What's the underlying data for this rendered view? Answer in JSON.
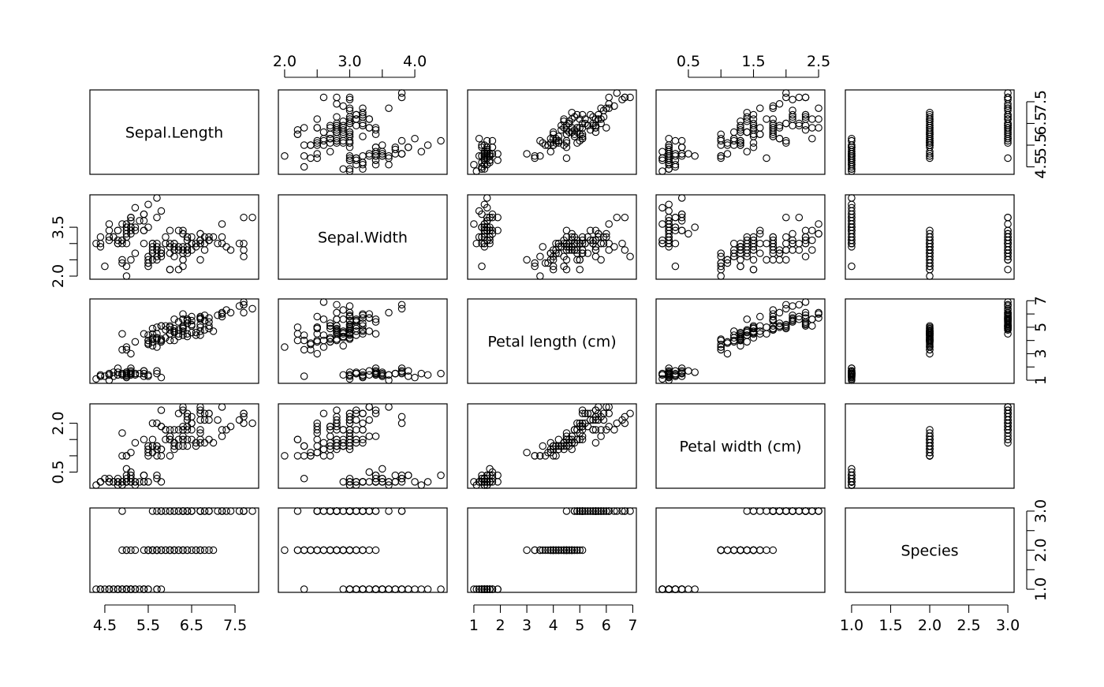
{
  "chart_data": {
    "type": "scatter",
    "variables": [
      {
        "name": "Sepal.Length",
        "range": [
          4.3,
          7.9
        ],
        "ticks": [
          4.5,
          5.5,
          6.5,
          7.5
        ],
        "tick_labels": [
          "4.5",
          "5.5",
          "6.5",
          "7.5"
        ]
      },
      {
        "name": "Sepal.Width",
        "range": [
          2.0,
          4.4
        ],
        "ticks": [
          2.0,
          2.5,
          3.0,
          3.5,
          4.0
        ],
        "tick_labels": [
          "2.0",
          "",
          "3.0",
          "",
          "4.0"
        ],
        "left_ticks": [
          2.0,
          2.5,
          3.0,
          3.5
        ],
        "left_tick_labels": [
          "2.0",
          "",
          "",
          "3.5"
        ]
      },
      {
        "name": "Petal length (cm)",
        "range": [
          1.0,
          6.9
        ],
        "ticks": [
          1,
          2,
          3,
          4,
          5,
          6,
          7
        ],
        "tick_labels": [
          "1",
          "2",
          "3",
          "4",
          "5",
          "6",
          "7"
        ],
        "right_ticks": [
          1,
          2,
          3,
          4,
          5,
          6,
          7
        ],
        "right_tick_labels": [
          "1",
          "",
          "3",
          "",
          "5",
          "",
          "7"
        ]
      },
      {
        "name": "Petal width (cm)",
        "range": [
          0.1,
          2.5
        ],
        "ticks": [
          0.5,
          1.0,
          1.5,
          2.0,
          2.5
        ],
        "tick_labels": [
          "0.5",
          "",
          "1.5",
          "",
          "2.5"
        ],
        "left_ticks": [
          0.5,
          1.0,
          1.5,
          2.0
        ],
        "left_tick_labels": [
          "0.5",
          "",
          "",
          "2.0"
        ]
      },
      {
        "name": "Species",
        "range": [
          1.0,
          3.0
        ],
        "ticks": [
          1.0,
          1.5,
          2.0,
          2.5,
          3.0
        ],
        "tick_labels": [
          "1.0",
          "1.5",
          "2.0",
          "2.5",
          "3.0"
        ],
        "right_ticks": [
          1.0,
          1.5,
          2.0,
          2.5,
          3.0
        ],
        "right_tick_labels": [
          "1.0",
          "",
          "2.0",
          "",
          "3.0"
        ]
      }
    ],
    "observations": [
      [
        5.1,
        3.5,
        1.4,
        0.2,
        1
      ],
      [
        4.9,
        3.0,
        1.4,
        0.2,
        1
      ],
      [
        4.7,
        3.2,
        1.3,
        0.2,
        1
      ],
      [
        4.6,
        3.1,
        1.5,
        0.2,
        1
      ],
      [
        5.0,
        3.6,
        1.4,
        0.2,
        1
      ],
      [
        5.4,
        3.9,
        1.7,
        0.4,
        1
      ],
      [
        4.6,
        3.4,
        1.4,
        0.3,
        1
      ],
      [
        5.0,
        3.4,
        1.5,
        0.2,
        1
      ],
      [
        4.4,
        2.9,
        1.4,
        0.2,
        1
      ],
      [
        4.9,
        3.1,
        1.5,
        0.1,
        1
      ],
      [
        5.4,
        3.7,
        1.5,
        0.2,
        1
      ],
      [
        4.8,
        3.4,
        1.6,
        0.2,
        1
      ],
      [
        4.8,
        3.0,
        1.4,
        0.1,
        1
      ],
      [
        4.3,
        3.0,
        1.1,
        0.1,
        1
      ],
      [
        5.8,
        4.0,
        1.2,
        0.2,
        1
      ],
      [
        5.7,
        4.4,
        1.5,
        0.4,
        1
      ],
      [
        5.4,
        3.9,
        1.3,
        0.4,
        1
      ],
      [
        5.1,
        3.5,
        1.4,
        0.3,
        1
      ],
      [
        5.7,
        3.8,
        1.7,
        0.3,
        1
      ],
      [
        5.1,
        3.8,
        1.5,
        0.3,
        1
      ],
      [
        5.4,
        3.4,
        1.7,
        0.2,
        1
      ],
      [
        5.1,
        3.7,
        1.5,
        0.4,
        1
      ],
      [
        4.6,
        3.6,
        1.0,
        0.2,
        1
      ],
      [
        5.1,
        3.3,
        1.7,
        0.5,
        1
      ],
      [
        4.8,
        3.4,
        1.9,
        0.2,
        1
      ],
      [
        5.0,
        3.0,
        1.6,
        0.2,
        1
      ],
      [
        5.0,
        3.4,
        1.6,
        0.4,
        1
      ],
      [
        5.2,
        3.5,
        1.5,
        0.2,
        1
      ],
      [
        5.2,
        3.4,
        1.4,
        0.2,
        1
      ],
      [
        4.7,
        3.2,
        1.6,
        0.2,
        1
      ],
      [
        4.8,
        3.1,
        1.6,
        0.2,
        1
      ],
      [
        5.4,
        3.4,
        1.5,
        0.4,
        1
      ],
      [
        5.2,
        4.1,
        1.5,
        0.1,
        1
      ],
      [
        5.5,
        4.2,
        1.4,
        0.2,
        1
      ],
      [
        4.9,
        3.1,
        1.5,
        0.2,
        1
      ],
      [
        5.0,
        3.2,
        1.2,
        0.2,
        1
      ],
      [
        5.5,
        3.5,
        1.3,
        0.2,
        1
      ],
      [
        4.9,
        3.6,
        1.4,
        0.1,
        1
      ],
      [
        4.4,
        3.0,
        1.3,
        0.2,
        1
      ],
      [
        5.1,
        3.4,
        1.5,
        0.2,
        1
      ],
      [
        5.0,
        3.5,
        1.3,
        0.3,
        1
      ],
      [
        4.5,
        2.3,
        1.3,
        0.3,
        1
      ],
      [
        4.4,
        3.2,
        1.3,
        0.2,
        1
      ],
      [
        5.0,
        3.5,
        1.6,
        0.6,
        1
      ],
      [
        5.1,
        3.8,
        1.9,
        0.4,
        1
      ],
      [
        4.8,
        3.0,
        1.4,
        0.3,
        1
      ],
      [
        5.1,
        3.8,
        1.6,
        0.2,
        1
      ],
      [
        4.6,
        3.2,
        1.4,
        0.2,
        1
      ],
      [
        5.3,
        3.7,
        1.5,
        0.2,
        1
      ],
      [
        5.0,
        3.3,
        1.4,
        0.2,
        1
      ],
      [
        7.0,
        3.2,
        4.7,
        1.4,
        2
      ],
      [
        6.4,
        3.2,
        4.5,
        1.5,
        2
      ],
      [
        6.9,
        3.1,
        4.9,
        1.5,
        2
      ],
      [
        5.5,
        2.3,
        4.0,
        1.3,
        2
      ],
      [
        6.5,
        2.8,
        4.6,
        1.5,
        2
      ],
      [
        5.7,
        2.8,
        4.5,
        1.3,
        2
      ],
      [
        6.3,
        3.3,
        4.7,
        1.6,
        2
      ],
      [
        4.9,
        2.4,
        3.3,
        1.0,
        2
      ],
      [
        6.6,
        2.9,
        4.6,
        1.3,
        2
      ],
      [
        5.2,
        2.7,
        3.9,
        1.4,
        2
      ],
      [
        5.0,
        2.0,
        3.5,
        1.0,
        2
      ],
      [
        5.9,
        3.0,
        4.2,
        1.5,
        2
      ],
      [
        6.0,
        2.2,
        4.0,
        1.0,
        2
      ],
      [
        6.1,
        2.9,
        4.7,
        1.4,
        2
      ],
      [
        5.6,
        2.9,
        3.6,
        1.3,
        2
      ],
      [
        6.7,
        3.1,
        4.4,
        1.4,
        2
      ],
      [
        5.6,
        3.0,
        4.5,
        1.5,
        2
      ],
      [
        5.8,
        2.7,
        4.1,
        1.0,
        2
      ],
      [
        6.2,
        2.2,
        4.5,
        1.5,
        2
      ],
      [
        5.6,
        2.5,
        3.9,
        1.1,
        2
      ],
      [
        5.9,
        3.2,
        4.8,
        1.8,
        2
      ],
      [
        6.1,
        2.8,
        4.0,
        1.3,
        2
      ],
      [
        6.3,
        2.5,
        4.9,
        1.5,
        2
      ],
      [
        6.1,
        2.8,
        4.7,
        1.2,
        2
      ],
      [
        6.4,
        2.9,
        4.3,
        1.3,
        2
      ],
      [
        6.6,
        3.0,
        4.4,
        1.4,
        2
      ],
      [
        6.8,
        2.8,
        4.8,
        1.4,
        2
      ],
      [
        6.7,
        3.0,
        5.0,
        1.7,
        2
      ],
      [
        6.0,
        2.9,
        4.5,
        1.5,
        2
      ],
      [
        5.7,
        2.6,
        3.5,
        1.0,
        2
      ],
      [
        5.5,
        2.4,
        3.8,
        1.1,
        2
      ],
      [
        5.5,
        2.4,
        3.7,
        1.0,
        2
      ],
      [
        5.8,
        2.7,
        3.9,
        1.2,
        2
      ],
      [
        6.0,
        2.7,
        5.1,
        1.6,
        2
      ],
      [
        5.4,
        3.0,
        4.5,
        1.5,
        2
      ],
      [
        6.0,
        3.4,
        4.5,
        1.6,
        2
      ],
      [
        6.7,
        3.1,
        4.7,
        1.5,
        2
      ],
      [
        6.3,
        2.3,
        4.4,
        1.3,
        2
      ],
      [
        5.6,
        3.0,
        4.1,
        1.3,
        2
      ],
      [
        5.5,
        2.5,
        4.0,
        1.3,
        2
      ],
      [
        5.5,
        2.6,
        4.4,
        1.2,
        2
      ],
      [
        6.1,
        3.0,
        4.6,
        1.4,
        2
      ],
      [
        5.8,
        2.6,
        4.0,
        1.2,
        2
      ],
      [
        5.0,
        2.3,
        3.3,
        1.0,
        2
      ],
      [
        5.6,
        2.7,
        4.2,
        1.3,
        2
      ],
      [
        5.7,
        3.0,
        4.2,
        1.2,
        2
      ],
      [
        5.7,
        2.9,
        4.2,
        1.3,
        2
      ],
      [
        6.2,
        2.9,
        4.3,
        1.3,
        2
      ],
      [
        5.1,
        2.5,
        3.0,
        1.1,
        2
      ],
      [
        5.7,
        2.8,
        4.1,
        1.3,
        2
      ],
      [
        6.3,
        3.3,
        6.0,
        2.5,
        3
      ],
      [
        5.8,
        2.7,
        5.1,
        1.9,
        3
      ],
      [
        7.1,
        3.0,
        5.9,
        2.1,
        3
      ],
      [
        6.3,
        2.9,
        5.6,
        1.8,
        3
      ],
      [
        6.5,
        3.0,
        5.8,
        2.2,
        3
      ],
      [
        7.6,
        3.0,
        6.6,
        2.1,
        3
      ],
      [
        4.9,
        2.5,
        4.5,
        1.7,
        3
      ],
      [
        7.3,
        2.9,
        6.3,
        1.8,
        3
      ],
      [
        6.7,
        2.5,
        5.8,
        1.8,
        3
      ],
      [
        7.2,
        3.6,
        6.1,
        2.5,
        3
      ],
      [
        6.5,
        3.2,
        5.1,
        2.0,
        3
      ],
      [
        6.4,
        2.7,
        5.3,
        1.9,
        3
      ],
      [
        6.8,
        3.0,
        5.5,
        2.1,
        3
      ],
      [
        5.7,
        2.5,
        5.0,
        2.0,
        3
      ],
      [
        5.8,
        2.8,
        5.1,
        2.4,
        3
      ],
      [
        6.4,
        3.2,
        5.3,
        2.3,
        3
      ],
      [
        6.5,
        3.0,
        5.5,
        1.8,
        3
      ],
      [
        7.7,
        3.8,
        6.7,
        2.2,
        3
      ],
      [
        7.7,
        2.6,
        6.9,
        2.3,
        3
      ],
      [
        6.0,
        2.2,
        5.0,
        1.5,
        3
      ],
      [
        6.9,
        3.2,
        5.7,
        2.3,
        3
      ],
      [
        5.6,
        2.8,
        4.9,
        2.0,
        3
      ],
      [
        7.7,
        2.8,
        6.7,
        2.0,
        3
      ],
      [
        6.3,
        2.7,
        4.9,
        1.8,
        3
      ],
      [
        6.7,
        3.3,
        5.7,
        2.1,
        3
      ],
      [
        7.2,
        3.2,
        6.0,
        1.8,
        3
      ],
      [
        6.2,
        2.8,
        4.8,
        1.8,
        3
      ],
      [
        6.1,
        3.0,
        4.9,
        1.8,
        3
      ],
      [
        6.4,
        2.8,
        5.6,
        2.1,
        3
      ],
      [
        7.2,
        3.0,
        5.8,
        1.6,
        3
      ],
      [
        7.4,
        2.8,
        6.1,
        1.9,
        3
      ],
      [
        7.9,
        3.8,
        6.4,
        2.0,
        3
      ],
      [
        6.4,
        2.8,
        5.6,
        2.2,
        3
      ],
      [
        6.3,
        2.8,
        5.1,
        1.5,
        3
      ],
      [
        6.1,
        2.6,
        5.6,
        1.4,
        3
      ],
      [
        7.7,
        3.0,
        6.1,
        2.3,
        3
      ],
      [
        6.3,
        3.4,
        5.6,
        2.4,
        3
      ],
      [
        6.4,
        3.1,
        5.5,
        1.8,
        3
      ],
      [
        6.0,
        3.0,
        4.8,
        1.8,
        3
      ],
      [
        6.9,
        3.1,
        5.4,
        2.1,
        3
      ],
      [
        6.7,
        3.1,
        5.6,
        2.4,
        3
      ],
      [
        6.9,
        3.1,
        5.1,
        2.3,
        3
      ],
      [
        5.8,
        2.7,
        5.1,
        1.9,
        3
      ],
      [
        6.8,
        3.2,
        5.9,
        2.3,
        3
      ],
      [
        6.7,
        3.3,
        5.7,
        2.5,
        3
      ],
      [
        6.7,
        3.0,
        5.2,
        2.3,
        3
      ],
      [
        6.3,
        2.5,
        5.0,
        1.9,
        3
      ],
      [
        6.5,
        3.0,
        5.2,
        2.0,
        3
      ],
      [
        6.2,
        3.4,
        5.4,
        2.3,
        3
      ],
      [
        5.9,
        3.0,
        5.1,
        1.8,
        3
      ]
    ]
  }
}
